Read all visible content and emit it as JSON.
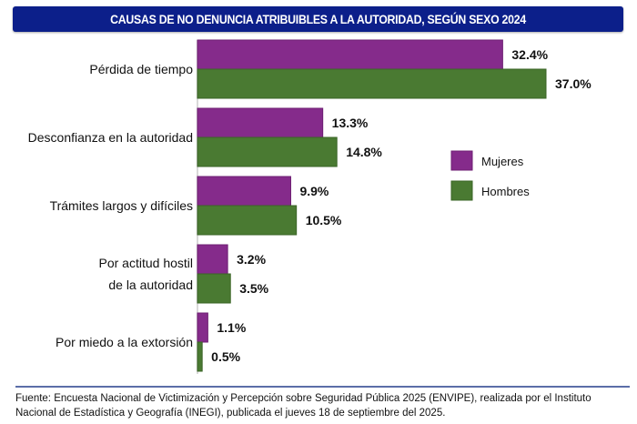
{
  "chart_data": {
    "type": "bar",
    "orientation": "horizontal",
    "title": "CAUSAS DE NO DENUNCIA ATRIBUIBLES A LA AUTORIDAD, SEGÚN SEXO 2024",
    "categories": [
      [
        "Pérdida de tiempo"
      ],
      [
        "Desconfianza en la autoridad"
      ],
      [
        "Trámites largos y difíciles"
      ],
      [
        "Por actitud hostil",
        "de la autoridad"
      ],
      [
        "Por miedo a la extorsión"
      ]
    ],
    "series": [
      {
        "name": "Mujeres",
        "color": "#852b8b",
        "values": [
          32.4,
          13.3,
          9.9,
          3.2,
          1.1
        ],
        "labels": [
          "32.4%",
          "13.3%",
          "9.9%",
          "3.2%",
          "1.1%"
        ]
      },
      {
        "name": "Hombres",
        "color": "#4a7a32",
        "values": [
          37.0,
          14.8,
          10.5,
          3.5,
          0.5
        ],
        "labels": [
          "37.0%",
          "14.8%",
          "10.5%",
          "3.5%",
          "0.5%"
        ]
      }
    ],
    "xlabel": "",
    "ylabel": "",
    "xlim": [
      0,
      37
    ],
    "grid": false,
    "legend_position": "right"
  },
  "source": "Fuente: Encuesta Nacional de Victimización y Percepción sobre Seguridad Pública 2025 (ENVIPE), realizada por el Instituto Nacional de Estadística y Geografía (INEGI), publicada el jueves 18 de septiembre del 2025."
}
